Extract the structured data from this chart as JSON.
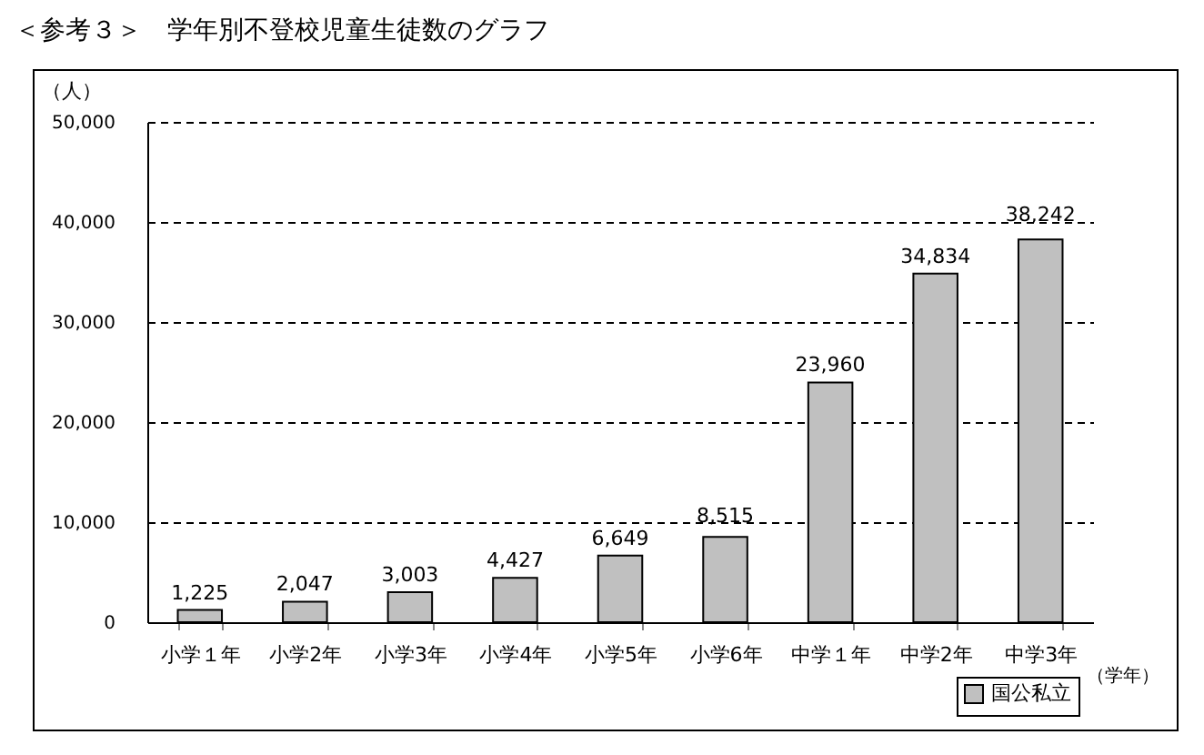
{
  "chart_data": {
    "type": "bar",
    "title": "＜参考３＞　学年別不登校児童生徒数のグラフ",
    "xlabel": "（学年）",
    "ylabel": "（人）",
    "categories": [
      "小学１年",
      "小学2年",
      "小学3年",
      "小学4年",
      "小学5年",
      "小学6年",
      "中学１年",
      "中学2年",
      "中学3年"
    ],
    "series": [
      {
        "name": "国公私立",
        "color": "#c0c0c0",
        "values": [
          1225,
          2047,
          3003,
          4427,
          6649,
          8515,
          23960,
          34834,
          38242
        ],
        "value_labels": [
          "1,225",
          "2,047",
          "3,003",
          "4,427",
          "6,649",
          "8,515",
          "23,960",
          "34,834",
          "38,242"
        ]
      }
    ],
    "ylim": [
      0,
      50000
    ],
    "yticks": [
      {
        "value": 0,
        "label": "0"
      },
      {
        "value": 10000,
        "label": "10,000"
      },
      {
        "value": 20000,
        "label": "20,000"
      },
      {
        "value": 30000,
        "label": "30,000"
      },
      {
        "value": 40000,
        "label": "40,000"
      },
      {
        "value": 50000,
        "label": "50,000"
      }
    ],
    "grid": "y",
    "line_style": "dashed",
    "legend": "bottom right"
  }
}
